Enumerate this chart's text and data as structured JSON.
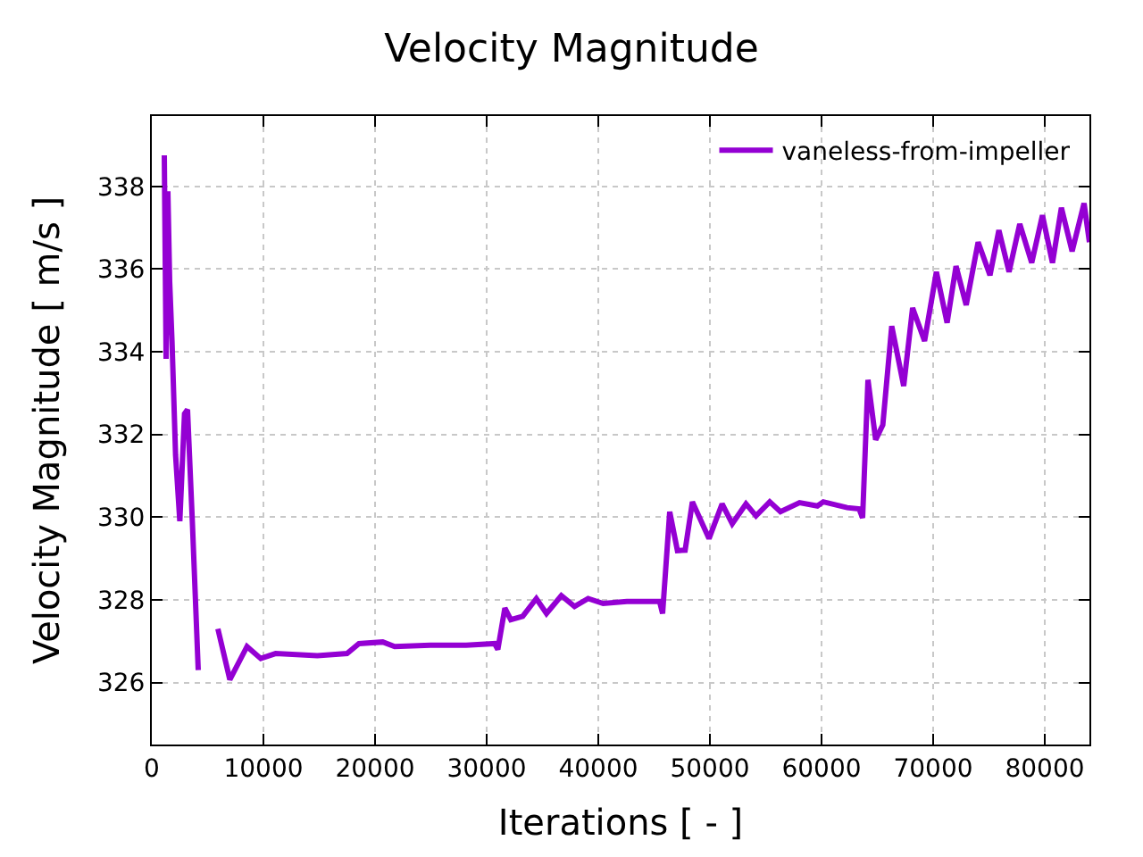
{
  "chart_data": {
    "type": "line",
    "title": "Velocity Magnitude",
    "xlabel": "Iterations [ - ]",
    "ylabel": "Velocity Magnitude [ m/s ]",
    "xlim": [
      0,
      84000
    ],
    "xticks": [
      0,
      10000,
      20000,
      30000,
      40000,
      50000,
      60000,
      70000,
      80000
    ],
    "ylim": [
      324.5,
      339.7
    ],
    "yticks": [
      326,
      328,
      330,
      332,
      334,
      336,
      338
    ],
    "grid": true,
    "legend": "top right",
    "marker": "none",
    "line_style": "solid",
    "series": [
      {
        "name": "vaneless-from-impeller",
        "color": "#9400d3",
        "x": [
          1120,
          1280,
          1440,
          1600,
          1810,
          2130,
          2510,
          2930,
          3200,
          3630,
          4160,
          4530,
          5120,
          5920,
          6990,
          8530,
          9760,
          11090,
          14830,
          17490,
          18560,
          20690,
          21760,
          24960,
          28160,
          30720,
          31000,
          31630,
          32160,
          33230,
          34450,
          35360,
          36690,
          37870,
          39090,
          40430,
          42560,
          44160,
          45490,
          45760,
          46400,
          47090,
          47780,
          48430,
          49920,
          51090,
          52000,
          53230,
          54130,
          55360,
          56320,
          58030,
          59630,
          60160,
          62290,
          63360,
          63680,
          64160,
          64850,
          65490,
          66290,
          67360,
          68160,
          69230,
          70290,
          71250,
          72050,
          72960,
          74030,
          75090,
          75890,
          76800,
          77760,
          78830,
          79790,
          80690,
          81490,
          82450,
          83520,
          84000
        ],
        "values": [
          338.75,
          333.83,
          337.88,
          335.7,
          334.26,
          331.5,
          329.9,
          332.5,
          332.6,
          329.9,
          326.3,
          null,
          null,
          327.3,
          326.07,
          326.87,
          326.58,
          326.7,
          326.65,
          326.7,
          326.94,
          326.98,
          326.87,
          326.9,
          326.9,
          326.94,
          326.8,
          327.8,
          327.52,
          327.6,
          328.03,
          327.67,
          328.1,
          327.84,
          328.03,
          327.91,
          327.96,
          327.96,
          327.96,
          327.67,
          330.13,
          329.19,
          329.2,
          330.37,
          329.48,
          330.32,
          329.84,
          330.32,
          330.03,
          330.37,
          330.13,
          330.35,
          330.27,
          330.37,
          330.23,
          330.2,
          329.98,
          333.32,
          331.87,
          332.23,
          334.62,
          333.17,
          335.06,
          334.26,
          335.93,
          334.7,
          336.07,
          335.13,
          336.65,
          335.85,
          336.94,
          335.93,
          337.09,
          336.15,
          337.3,
          336.15,
          337.48,
          336.43,
          337.59,
          336.65
        ]
      }
    ]
  }
}
